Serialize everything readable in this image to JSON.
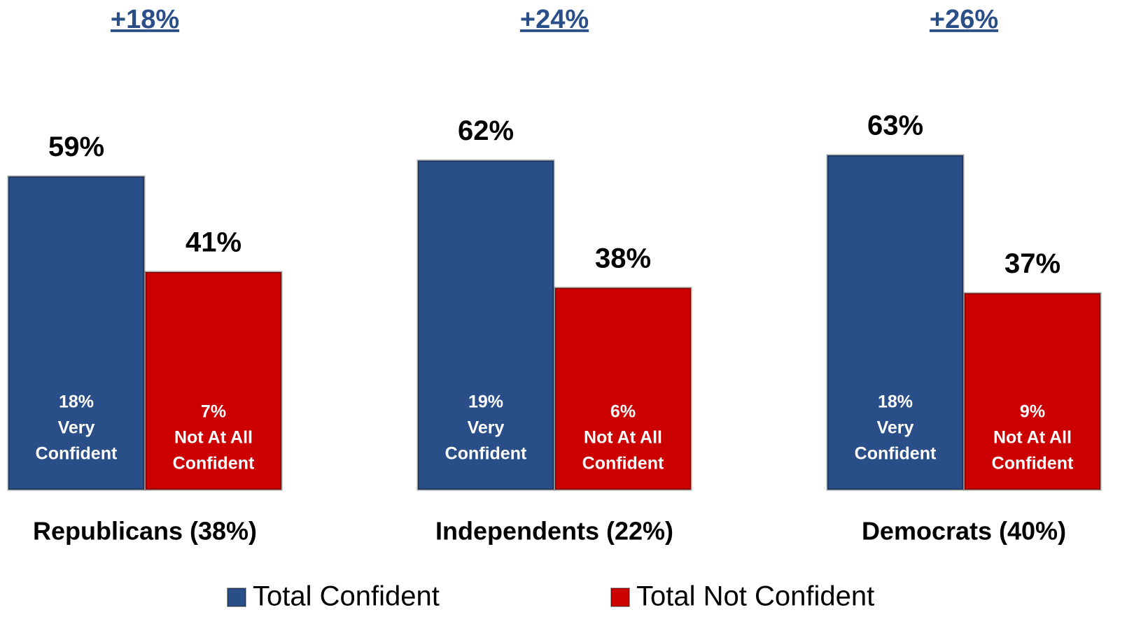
{
  "chart_data": {
    "type": "bar",
    "categories": [
      "Republicans (38%)",
      "Independents (22%)",
      "Democrats (40%)"
    ],
    "annotations": [
      "+18%",
      "+24%",
      "+26%"
    ],
    "series": [
      {
        "name": "Total Confident",
        "color": "#2a4f88",
        "values": [
          59,
          62,
          63
        ],
        "value_labels": [
          "59%",
          "62%",
          "63%"
        ],
        "inner_labels": [
          [
            "18%",
            "Very",
            "Confident"
          ],
          [
            "19%",
            "Very",
            "Confident"
          ],
          [
            "18%",
            "Very",
            "Confident"
          ]
        ]
      },
      {
        "name": "Total Not Confident",
        "color": "#cc0000",
        "values": [
          41,
          38,
          37
        ],
        "value_labels": [
          "41%",
          "38%",
          "37%"
        ],
        "inner_labels": [
          [
            "7%",
            "Not At All",
            "Confident"
          ],
          [
            "6%",
            "Not At All",
            "Confident"
          ],
          [
            "9%",
            "Not At All",
            "Confident"
          ]
        ]
      }
    ],
    "ylim": [
      0,
      70
    ],
    "legend": "bottom"
  }
}
